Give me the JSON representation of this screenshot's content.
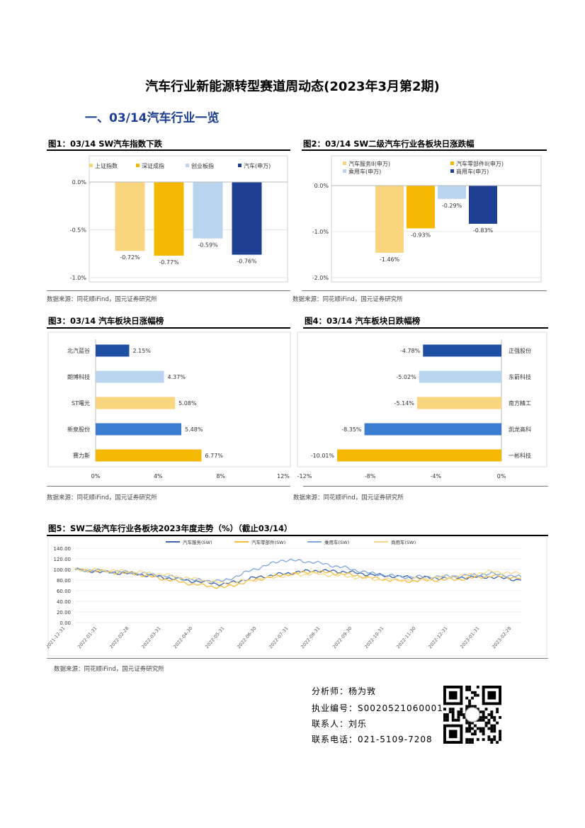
{
  "title": "汽车行业新能源转型赛道周动态(2023年3月第2期)",
  "section": "一、03/14汽车行业一览",
  "fig1": {
    "title": "图1：03/14 SW汽车指数下跌",
    "source": "数据来源：同花顺iFind，国元证券研究所",
    "chart_data": {
      "type": "bar",
      "categories": [
        "上证指数",
        "深证成指",
        "创业板指",
        "汽车(申万)"
      ],
      "values": [
        -0.72,
        -0.77,
        -0.59,
        -0.76
      ],
      "value_labels": [
        "-0.72%",
        "-0.77%",
        "-0.59%",
        "-0.76%"
      ],
      "colors": [
        "#f9d57e",
        "#f5b800",
        "#b9d4ef",
        "#1f3f93"
      ],
      "ylim": [
        -1.0,
        0.0
      ],
      "yticks": [
        "0.0%",
        "-0.5%",
        "-1.0%"
      ],
      "legend": "top"
    }
  },
  "fig2": {
    "title": "图2：03/14 SW二级汽车行业各板块日涨跌幅",
    "source": "数据来源：同花顺iFind，国元证券研究所",
    "chart_data": {
      "type": "bar",
      "categories": [
        "汽车服务II(申万)",
        "汽车零部件II(申万)",
        "乘用车(申万)",
        "商用车(申万)"
      ],
      "values": [
        -1.46,
        -0.93,
        -0.29,
        -0.83
      ],
      "value_labels": [
        "-1.46%",
        "-0.93%",
        "-0.29%",
        "-0.83%"
      ],
      "colors": [
        "#f9d57e",
        "#f5b800",
        "#b9d4ef",
        "#1f3f93"
      ],
      "ylim": [
        -2.0,
        0.0
      ],
      "yticks": [
        "0.0%",
        "-1.0%",
        "-2.0%"
      ],
      "legend": "top"
    }
  },
  "fig3": {
    "title": "图3：03/14 汽车板块日涨幅榜",
    "source": "数据来源：同花顺iFind，国元证券研究所",
    "chart_data": {
      "type": "bar",
      "orientation": "horizontal",
      "categories": [
        "北汽蓝谷",
        "朗博科技",
        "ST曙光",
        "新泉股份",
        "赛力斯"
      ],
      "values": [
        2.15,
        4.37,
        5.08,
        5.48,
        6.77
      ],
      "value_labels": [
        "2.15%",
        "4.37%",
        "5.08%",
        "5.48%",
        "6.77%"
      ],
      "colors": [
        "#1f4fa3",
        "#b9d4ef",
        "#f9d57e",
        "#3b7dd0",
        "#f5b800"
      ],
      "xlim": [
        0,
        12
      ],
      "xticks": [
        "0%",
        "4%",
        "8%",
        "12%"
      ]
    }
  },
  "fig4": {
    "title": "图4：03/14 汽车板块日跌幅榜",
    "source": "数据来源：同花顺iFind，国元证券研究所",
    "chart_data": {
      "type": "bar",
      "orientation": "horizontal",
      "categories": [
        "正强股份",
        "东箭科技",
        "南方精工",
        "凯龙高科",
        "一彬科技"
      ],
      "values": [
        -4.78,
        -5.02,
        -5.14,
        -8.35,
        -10.01
      ],
      "value_labels": [
        "-4.78%",
        "-5.02%",
        "-5.14%",
        "-8.35%",
        "-10.01%"
      ],
      "colors": [
        "#1f4fa3",
        "#b9d4ef",
        "#f9d57e",
        "#3b7dd0",
        "#f5b800"
      ],
      "xlim": [
        -12,
        0
      ],
      "xticks": [
        "-12%",
        "-8%",
        "-4%",
        "0%"
      ]
    }
  },
  "fig5": {
    "title": "图5：SW二级汽车行业各板块2023年度走势（%）（截止03/14）",
    "source": "数据来源：同花顺iFind，国元证券研究所",
    "chart_data": {
      "type": "line",
      "ylim": [
        0,
        140
      ],
      "yticks": [
        "0.00",
        "20.00",
        "40.00",
        "60.00",
        "80.00",
        "100.00",
        "120.00",
        "140.00"
      ],
      "xticks": [
        "2021-12-31",
        "2022-01-31",
        "2022-02-28",
        "2022-03-31",
        "2022-04-30",
        "2022-05-31",
        "2022-06-30",
        "2022-07-31",
        "2022-08-31",
        "2022-09-30",
        "2022-10-31",
        "2022-11-30",
        "2022-12-31",
        "2023-01-31",
        "2023-02-28"
      ],
      "legend": "top",
      "series": [
        {
          "name": "汽车服务(SW)",
          "color": "#3a64b0",
          "values": [
            100,
            95,
            92,
            85,
            78,
            72,
            84,
            92,
            98,
            96,
            90,
            86,
            84,
            85,
            86,
            80
          ]
        },
        {
          "name": "汽车零部件(SW)",
          "color": "#f2b93b",
          "values": [
            100,
            96,
            92,
            82,
            72,
            66,
            80,
            90,
            96,
            92,
            84,
            78,
            80,
            82,
            88,
            84
          ]
        },
        {
          "name": "乘用车(SW)",
          "color": "#7fa7de",
          "values": [
            100,
            97,
            94,
            88,
            80,
            78,
            100,
            118,
            114,
            104,
            92,
            86,
            86,
            88,
            92,
            86
          ]
        },
        {
          "name": "商用车(SW)",
          "color": "#f7d98a",
          "values": [
            100,
            98,
            96,
            90,
            82,
            74,
            80,
            88,
            92,
            88,
            82,
            80,
            84,
            88,
            96,
            92
          ]
        }
      ]
    }
  },
  "analyst": {
    "name_line": "分析师：杨为敩",
    "cert_line": "执业编号：S0020521060001",
    "contact_line": "联系人：刘乐",
    "phone_line": "联系电话：021-5109-7208"
  },
  "qr_icon": "qr-code-icon"
}
